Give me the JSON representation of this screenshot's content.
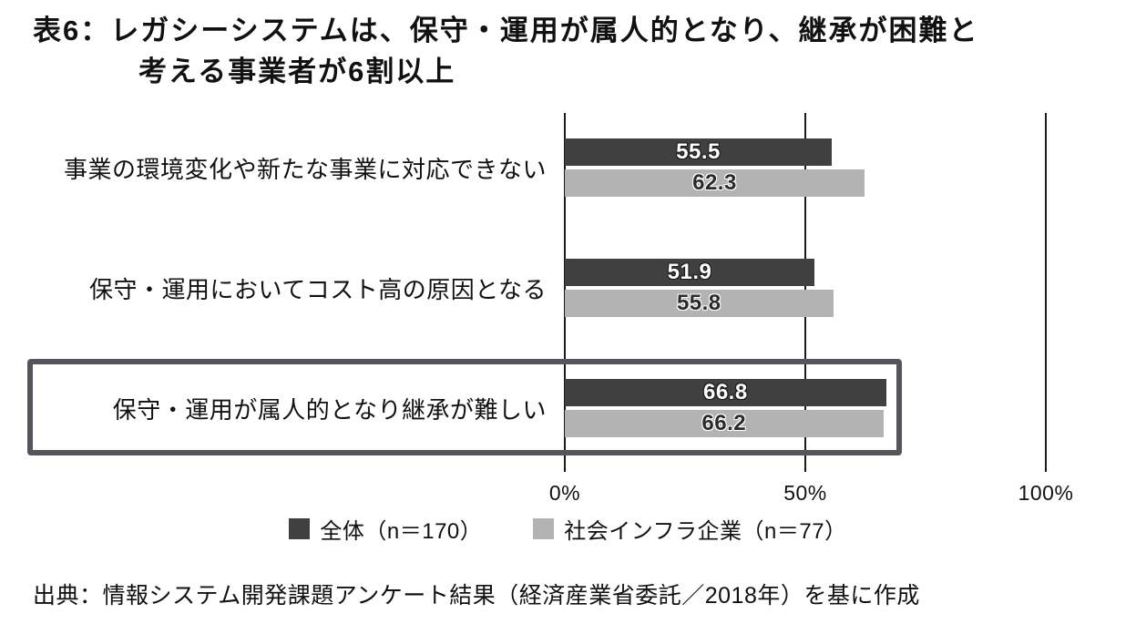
{
  "title": {
    "line1": "表6：レガシーシステムは、保守・運用が属人的となり、継承が困難と",
    "line2": "考える事業者が6割以上"
  },
  "chart_data": {
    "type": "bar",
    "orientation": "horizontal",
    "title": "表6：レガシーシステムは、保守・運用が属人的となり、継承が困難と考える事業者が6割以上",
    "categories": [
      "事業の環境変化や新たな事業に対応できない",
      "保守・運用においてコスト高の原因となる",
      "保守・運用が属人的となり継承が難しい"
    ],
    "series": [
      {
        "name": "全体（n＝170）",
        "color": "#404040",
        "value_text_color": "#ffffff",
        "values": [
          55.5,
          51.9,
          66.8
        ]
      },
      {
        "name": "社会インフラ企業（n＝77）",
        "color": "#b3b3b3",
        "value_text_color": "#2b2b2b",
        "values": [
          62.3,
          55.8,
          66.2
        ]
      }
    ],
    "xlim": [
      0,
      100
    ],
    "x_tick_values": [
      0,
      50,
      100
    ],
    "x_tick_labels": [
      "0%",
      "50%",
      "100%"
    ],
    "grid": "vertical-gridlines",
    "legend_position": "bottom",
    "highlighted_category_index": 2,
    "highlighted_category": "保守・運用が属人的となり継承が難しい",
    "highlight_box_color": "#54565b"
  },
  "source": "出典：情報システム開発課題アンケート結果（経済産業省委託／2018年）を基に作成"
}
